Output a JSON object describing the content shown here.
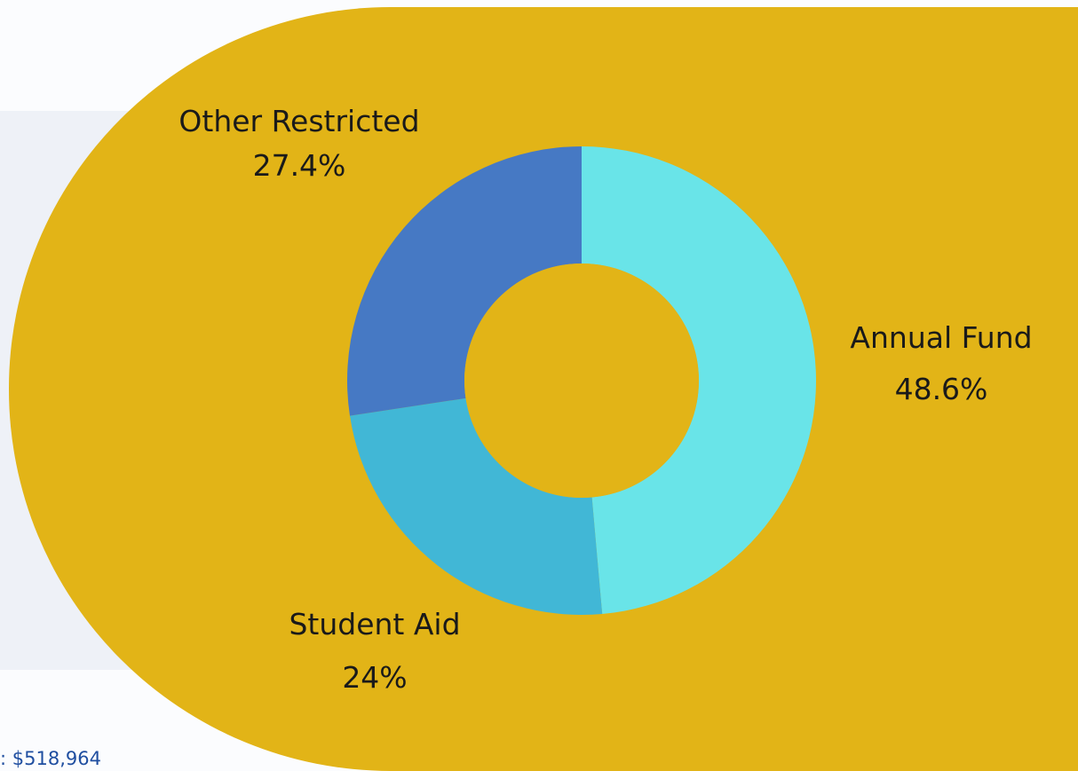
{
  "colors": {
    "background": "#fbfcfe",
    "panel": "#eef1f7",
    "gold": "#e2b417",
    "total_text": "#1f4ea0"
  },
  "total_label": ": $518,964",
  "chart_data": {
    "type": "pie",
    "variant": "donut",
    "title": "",
    "series": [
      {
        "slices": [
          {
            "label": "Annual Fund",
            "percent_label": "48.6%",
            "value": 48.6,
            "color": "#69e4e8"
          },
          {
            "label": "Student Aid",
            "percent_label": "24%",
            "value": 24.0,
            "color": "#41b7d6"
          },
          {
            "label": "Other Restricted",
            "percent_label": "27.4%",
            "value": 27.4,
            "color": "#4679c4"
          }
        ]
      }
    ],
    "start_angle": "12 o'clock",
    "direction": "clockwise",
    "legend": "none",
    "labels_outside": true
  }
}
